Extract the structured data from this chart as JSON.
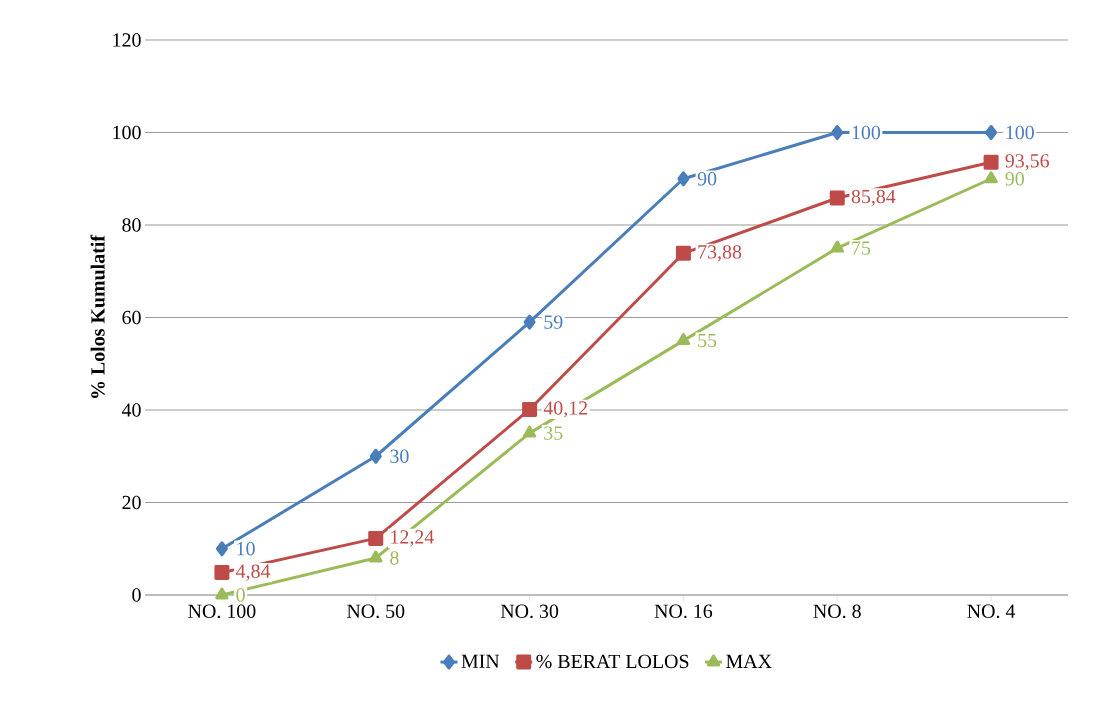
{
  "chart_data": {
    "type": "line",
    "ylabel": "% Lolos Kumulatif",
    "categories": [
      "NO. 100",
      "NO. 50",
      "NO. 30",
      "NO. 16",
      "NO. 8",
      "NO. 4"
    ],
    "series": [
      {
        "name": "MIN",
        "color": "#4a7ebb",
        "marker": "diamond",
        "values": [
          10,
          30,
          59,
          90,
          100,
          100
        ],
        "value_labels": [
          "10",
          "30",
          "59",
          "90",
          "100",
          "100"
        ]
      },
      {
        "name": "% BERAT LOLOS",
        "color": "#be4b48",
        "marker": "square",
        "values": [
          4.84,
          12.24,
          40.12,
          73.88,
          85.84,
          93.56
        ],
        "value_labels": [
          "4,84",
          "12,24",
          "40,12",
          "73,88",
          "85,84",
          "93,56"
        ]
      },
      {
        "name": "MAX",
        "color": "#9bbb59",
        "marker": "triangle",
        "values": [
          0,
          8,
          35,
          55,
          75,
          90
        ],
        "value_labels": [
          "0",
          "8",
          "35",
          "55",
          "75",
          "90"
        ]
      }
    ],
    "ylim": [
      0,
      120
    ],
    "yticks": [
      0,
      20,
      40,
      60,
      80,
      100,
      120
    ],
    "grid": "y",
    "legend": "bottom"
  }
}
